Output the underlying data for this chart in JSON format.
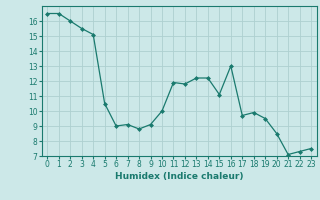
{
  "x": [
    0,
    1,
    2,
    3,
    4,
    5,
    6,
    7,
    8,
    9,
    10,
    11,
    12,
    13,
    14,
    15,
    16,
    17,
    18,
    19,
    20,
    21,
    22,
    23
  ],
  "y": [
    16.5,
    16.5,
    16.0,
    15.5,
    15.1,
    10.5,
    9.0,
    9.1,
    8.8,
    9.1,
    10.0,
    11.9,
    11.8,
    12.2,
    12.2,
    11.1,
    13.0,
    9.7,
    9.9,
    9.5,
    8.5,
    7.1,
    7.3,
    7.5
  ],
  "line_color": "#1a7a6e",
  "marker": "D",
  "markersize": 2.0,
  "linewidth": 0.9,
  "bg_color": "#cce8e8",
  "grid_color": "#aed0d0",
  "xlabel": "Humidex (Indice chaleur)",
  "xlim": [
    -0.5,
    23.5
  ],
  "ylim": [
    7,
    17
  ],
  "yticks": [
    7,
    8,
    9,
    10,
    11,
    12,
    13,
    14,
    15,
    16
  ],
  "xticks": [
    0,
    1,
    2,
    3,
    4,
    5,
    6,
    7,
    8,
    9,
    10,
    11,
    12,
    13,
    14,
    15,
    16,
    17,
    18,
    19,
    20,
    21,
    22,
    23
  ],
  "tick_fontsize": 5.5,
  "label_fontsize": 6.5
}
